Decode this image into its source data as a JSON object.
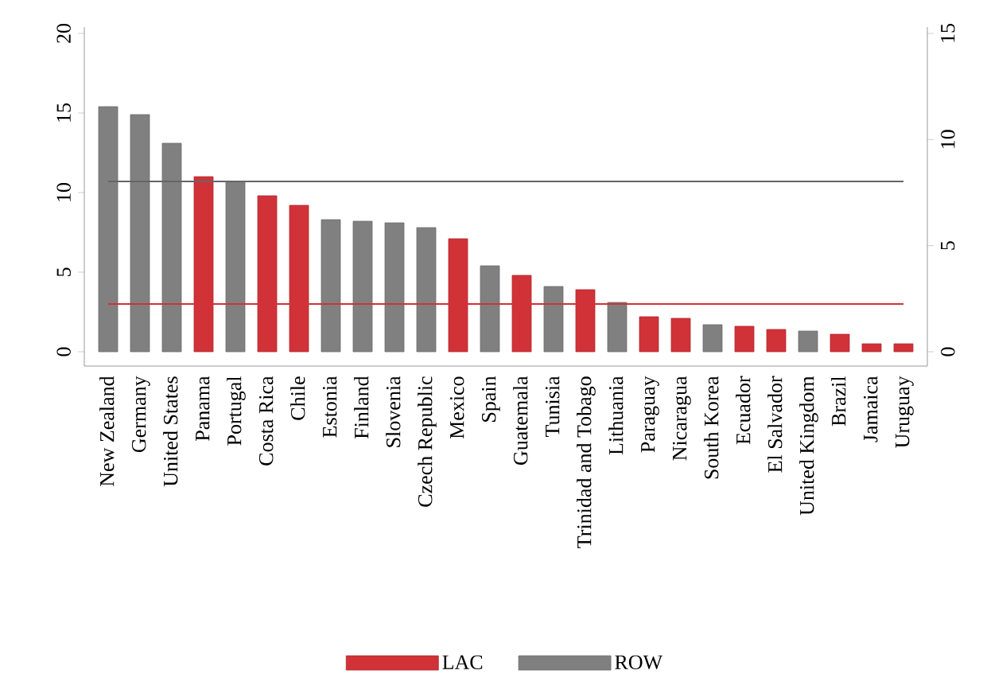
{
  "chart_data": {
    "type": "bar",
    "categories": [
      "New Zealand",
      "Germany",
      "United States",
      "Panama",
      "Portugal",
      "Costa Rica",
      "Chile",
      "Estonia",
      "Finland",
      "Slovenia",
      "Czech Republic",
      "Mexico",
      "Spain",
      "Guatemala",
      "Tunisia",
      "Trinidad and Tobago",
      "Lithuania",
      "Paraguay",
      "Nicaragua",
      "South Korea",
      "Ecuador",
      "El Salvador",
      "United Kingdom",
      "Brazil",
      "Jamaica",
      "Uruguay"
    ],
    "series": [
      {
        "name": "LAC",
        "color": "#d03238",
        "values": [
          null,
          null,
          null,
          11.0,
          null,
          9.8,
          9.2,
          null,
          null,
          null,
          null,
          7.1,
          null,
          4.8,
          null,
          3.9,
          null,
          2.2,
          2.1,
          null,
          1.6,
          1.4,
          null,
          1.1,
          0.5,
          0.5
        ]
      },
      {
        "name": "ROW",
        "color": "#808080",
        "values": [
          15.4,
          14.9,
          13.1,
          null,
          10.7,
          null,
          null,
          8.3,
          8.2,
          8.1,
          7.8,
          null,
          5.4,
          null,
          4.1,
          null,
          3.1,
          null,
          null,
          1.7,
          null,
          null,
          1.3,
          null,
          null,
          null
        ]
      }
    ],
    "ylim": [
      -0.9,
      20.4
    ],
    "yticks": [
      0,
      5,
      10,
      15,
      20
    ],
    "y2lim": [
      -0.675,
      15.3
    ],
    "y2ticks": [
      0,
      5,
      10,
      15
    ],
    "ref_lines": [
      {
        "axis": "y",
        "value": 10.7,
        "color": "#666666"
      },
      {
        "axis": "y",
        "value": 3.0,
        "color": "#d03238"
      }
    ],
    "legend": "bottom"
  }
}
